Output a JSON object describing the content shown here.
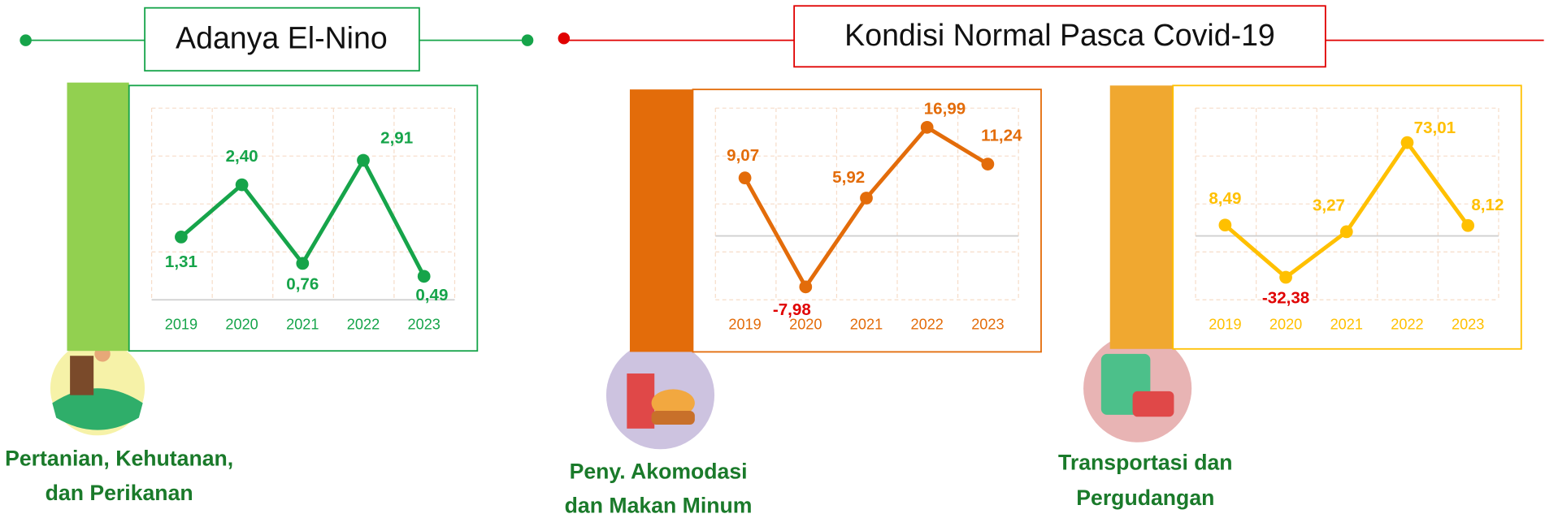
{
  "banners": [
    "Adanya El-Nino",
    "Kondisi Normal  Pasca Covid-19"
  ],
  "chart_data": [
    {
      "type": "line",
      "caption": [
        "Pertanian, Kehutanan,",
        "dan Perikanan"
      ],
      "categories": [
        "2019",
        "2020",
        "2021",
        "2022",
        "2023"
      ],
      "values": [
        1.31,
        2.4,
        0.76,
        2.91,
        0.49
      ],
      "value_labels": [
        "1,31",
        "2,40",
        "0,76",
        "2,91",
        "0,49"
      ],
      "ylim": [
        0,
        4
      ],
      "color": "#16a44a"
    },
    {
      "type": "line",
      "caption": [
        "Peny. Akomodasi",
        "dan Makan Minum"
      ],
      "categories": [
        "2019",
        "2020",
        "2021",
        "2022",
        "2023"
      ],
      "values": [
        9.07,
        -7.98,
        5.92,
        16.99,
        11.24
      ],
      "value_labels": [
        "9,07",
        "-7,98",
        "5,92",
        "16,99",
        "11,24"
      ],
      "ylim": [
        -10,
        20
      ],
      "color": "#e36c0a"
    },
    {
      "type": "line",
      "caption": [
        "Transportasi dan",
        "Pergudangan"
      ],
      "categories": [
        "2019",
        "2020",
        "2021",
        "2022",
        "2023"
      ],
      "values": [
        8.49,
        -32.38,
        3.27,
        73.01,
        8.12
      ],
      "value_labels": [
        "8,49",
        "-32,38",
        "3,27",
        "73,01",
        "8,12"
      ],
      "ylim": [
        -50,
        100
      ],
      "color": "#ffc000"
    }
  ]
}
